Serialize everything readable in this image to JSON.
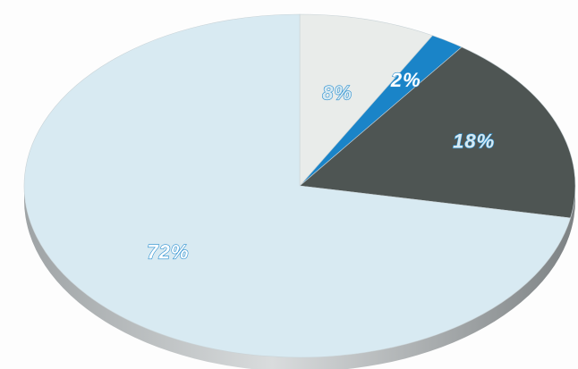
{
  "chart_data": {
    "type": "pie",
    "three_d": true,
    "labels": [
      "8%",
      "2%",
      "18%",
      "72%"
    ],
    "values": [
      8,
      2,
      18,
      72
    ],
    "title": "",
    "legend": "none",
    "colors": {
      "slice_1": "#e9ecea",
      "slice_2": "#1a84c8",
      "slice_3": "#4e5553",
      "slice_4": "#d8eaf2",
      "label_fill": "#ffffff",
      "label_stroke_light": "#2a8fd0",
      "label_stroke_dark": "#2a8fd0",
      "label_fill_light": "#d8eaf2"
    }
  }
}
